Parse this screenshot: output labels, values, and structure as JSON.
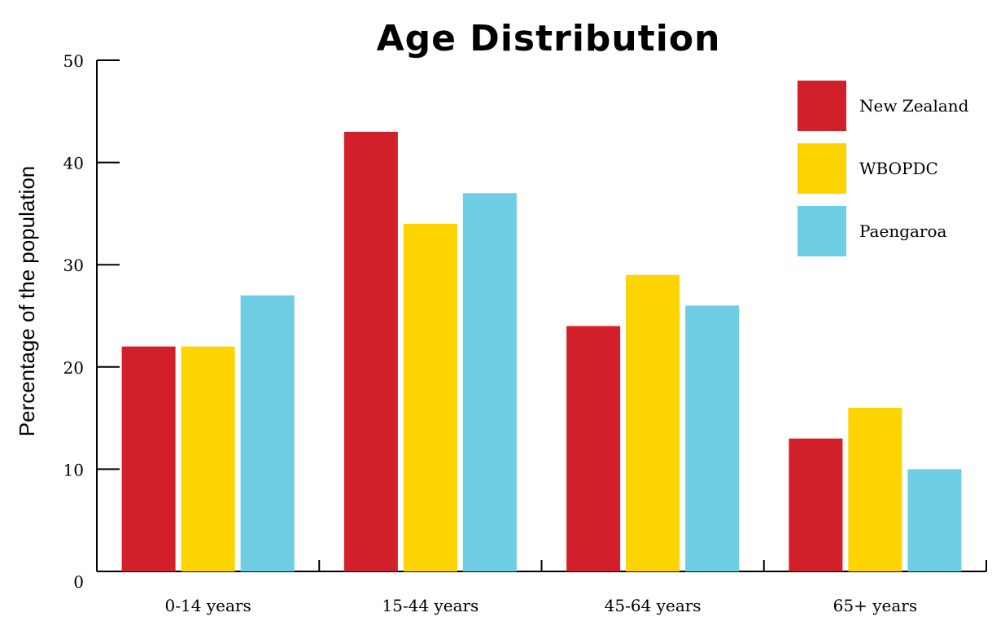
{
  "chart_data": {
    "type": "bar",
    "title": "Age Distribution",
    "xlabel": "",
    "ylabel": "Percentage of the population",
    "ylim": [
      0,
      50
    ],
    "yticks": [
      0,
      10,
      20,
      30,
      40,
      50
    ],
    "categories": [
      "0-14 years",
      "15-44 years",
      "45-64 years",
      "65+ years"
    ],
    "series": [
      {
        "name": "New Zealand",
        "color": "#d2202a",
        "values": [
          22,
          43,
          24,
          13
        ]
      },
      {
        "name": "WBOPDC",
        "color": "#fdd300",
        "values": [
          22,
          34,
          29,
          16
        ]
      },
      {
        "name": "Paengaroa",
        "color": "#6dcde3",
        "values": [
          27,
          37,
          26,
          10
        ]
      }
    ],
    "legend": "top-right",
    "grid": false
  }
}
